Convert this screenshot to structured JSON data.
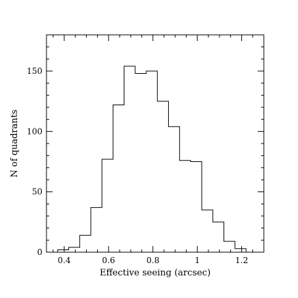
{
  "chart_data": {
    "type": "histogram",
    "title": "",
    "xlabel": "Effective seeing (arcsec)",
    "ylabel": "N of quadrants",
    "xlim": [
      0.32,
      1.3
    ],
    "ylim": [
      0,
      180
    ],
    "x_ticks": [
      0.4,
      0.6,
      0.8,
      1,
      1.2
    ],
    "x_tick_labels": [
      "0.4",
      "0.6",
      "0.8",
      "1",
      "1.2"
    ],
    "y_ticks": [
      0,
      50,
      100,
      150
    ],
    "y_tick_labels": [
      "0",
      "50",
      "100",
      "150"
    ],
    "grid": false,
    "legend": "none",
    "bin_edges": [
      0.37,
      0.42,
      0.47,
      0.52,
      0.57,
      0.62,
      0.67,
      0.72,
      0.77,
      0.82,
      0.87,
      0.92,
      0.97,
      1.02,
      1.07,
      1.12,
      1.17,
      1.22
    ],
    "counts": [
      2,
      4,
      14,
      37,
      77,
      122,
      154,
      148,
      150,
      125,
      104,
      76,
      75,
      35,
      25,
      9,
      3
    ]
  }
}
